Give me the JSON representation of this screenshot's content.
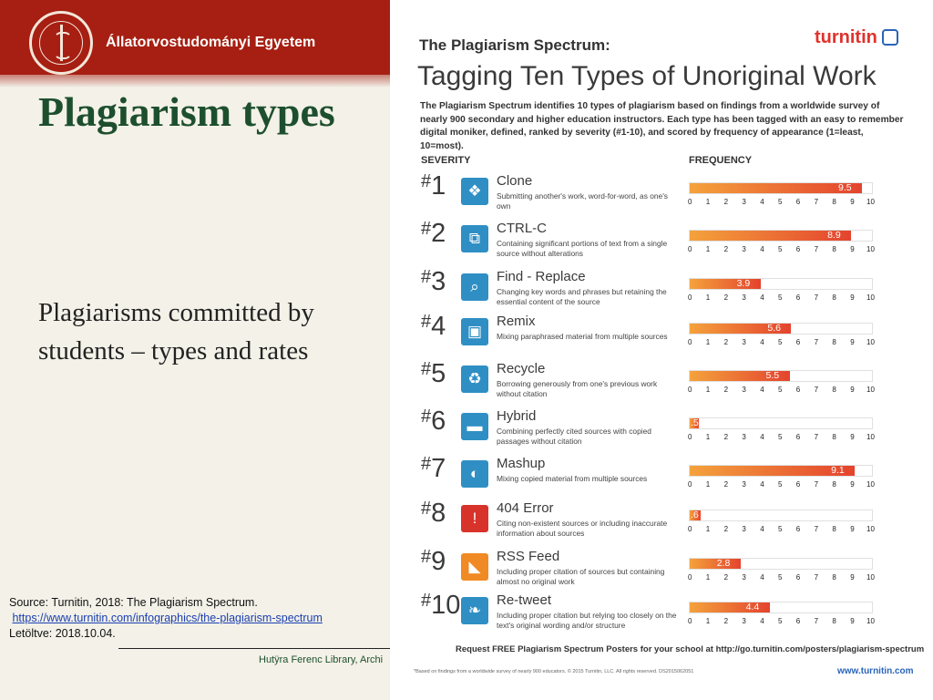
{
  "slide": {
    "university": "Állatorvostudományi Egyetem",
    "title": "Plagiarism types",
    "subtitle": "Plagiarisms committed by students – types and rates",
    "source_line": "Source: Turnitin, 2018: The Plagiarism Spectrum.",
    "source_link": "https://www.turnitin.com/infographics/the-plagiarism-spectrum",
    "downloaded": "Letöltve: 2018.10.04.",
    "footer": "Hutÿra Ferenc Library, Archi"
  },
  "infographic": {
    "kicker": "The Plagiarism Spectrum:",
    "logo": "turnitin",
    "title": "Tagging Ten Types of Unoriginal Work",
    "intro": "The Plagiarism Spectrum identifies 10 types of plagiarism based on findings from a worldwide survey of nearly 900 secondary and higher education instructors. Each type has been tagged with an easy to remember digital moniker, defined, ranked by severity (#1-10), and scored by frequency of appearance (1=least, 10=most).",
    "severity_label": "SEVERITY",
    "frequency_label": "FREQUENCY",
    "request": "Request FREE Plagiarism Spectrum Posters for your school at http://go.turnitin.com/posters/plagiarism-spectrum",
    "footnote": "*Based on findings from a worldwide survey of nearly 900 educators.  © 2015 Turnitin, LLC. All rights reserved.  DS2015062051",
    "url": "www.turnitin.com",
    "colors": {
      "bar_start": "#f4a23c",
      "bar_end": "#e4432e",
      "accent_red": "#e0322c",
      "title_green": "#1d4f2e"
    }
  },
  "chart_data": {
    "type": "bar",
    "orientation": "horizontal",
    "xlim": [
      0,
      10
    ],
    "ticks": [
      "0",
      "1",
      "2",
      "3",
      "4",
      "5",
      "6",
      "7",
      "8",
      "9",
      "10"
    ],
    "items": [
      {
        "rank": "1",
        "name": "Clone",
        "desc": "Submitting another's work, word-for-word, as one's own",
        "icon": "puzzle-icon",
        "icon_color": "#2f8fc4",
        "value": 9.5,
        "label": "9.5"
      },
      {
        "rank": "2",
        "name": "CTRL-C",
        "desc": "Containing significant portions of text from a single source without alterations",
        "icon": "copy-icon",
        "icon_color": "#2f8fc4",
        "value": 8.9,
        "label": "8.9"
      },
      {
        "rank": "3",
        "name": "Find - Replace",
        "desc": "Changing key words and phrases but retaining the essential content of the source",
        "icon": "magnifier-icon",
        "icon_color": "#2f8fc4",
        "value": 3.9,
        "label": "3.9"
      },
      {
        "rank": "4",
        "name": "Remix",
        "desc": "Mixing paraphrased material from multiple sources",
        "icon": "cassette-icon",
        "icon_color": "#2f8fc4",
        "value": 5.6,
        "label": "5.6"
      },
      {
        "rank": "5",
        "name": "Recycle",
        "desc": "Borrowing generously from one's previous work without citation",
        "icon": "recycle-icon",
        "icon_color": "#2f8fc4",
        "value": 5.5,
        "label": "5.5"
      },
      {
        "rank": "6",
        "name": "Hybrid",
        "desc": "Combining perfectly cited sources with copied passages without citation",
        "icon": "car-icon",
        "icon_color": "#2f8fc4",
        "value": 0.5,
        "label": ".5"
      },
      {
        "rank": "7",
        "name": "Mashup",
        "desc": "Mixing copied material from multiple sources",
        "icon": "mashup-icon",
        "icon_color": "#2f8fc4",
        "value": 9.1,
        "label": "9.1"
      },
      {
        "rank": "8",
        "name": "404 Error",
        "desc": "Citing non-existent sources or including inaccurate information about sources",
        "icon": "warning-icon",
        "icon_color": "#d8332b",
        "value": 0.6,
        "label": ".6"
      },
      {
        "rank": "9",
        "name": "RSS Feed",
        "desc": "Including proper citation of sources but containing almost no original work",
        "icon": "rss-icon",
        "icon_color": "#f08a24",
        "value": 2.8,
        "label": "2.8"
      },
      {
        "rank": "10",
        "name": "Re-tweet",
        "desc": "Including proper citation but relying too closely on the text's original wording and/or structure",
        "icon": "twitter-icon",
        "icon_color": "#2f8fc4",
        "value": 4.4,
        "label": "4.4"
      }
    ]
  }
}
